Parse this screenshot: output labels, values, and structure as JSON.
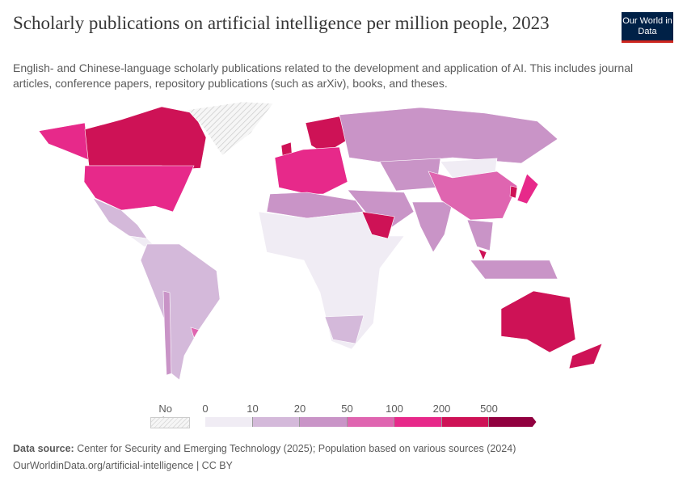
{
  "header": {
    "title": "Scholarly publications on artificial intelligence per million people, 2023",
    "subtitle": "English- and Chinese-language scholarly publications related to the development and application of AI. This includes journal articles, conference papers, repository publications (such as arXiv), books, and theses.",
    "logo": "Our World in Data"
  },
  "legend": {
    "no_data_label": "No data",
    "ticks": [
      "0",
      "10",
      "20",
      "50",
      "100",
      "200",
      "500"
    ],
    "colors": [
      "#f0ecf4",
      "#d4b9da",
      "#c994c7",
      "#df65b0",
      "#e7298a",
      "#ce1256",
      "#91003f"
    ],
    "no_data_color": "#e0e0e0"
  },
  "footer": {
    "source_label": "Data source:",
    "source": "Center for Security and Emerging Technology (2025); Population based on various sources (2024)",
    "url": "OurWorldinData.org/artificial-intelligence | CC BY"
  }
}
